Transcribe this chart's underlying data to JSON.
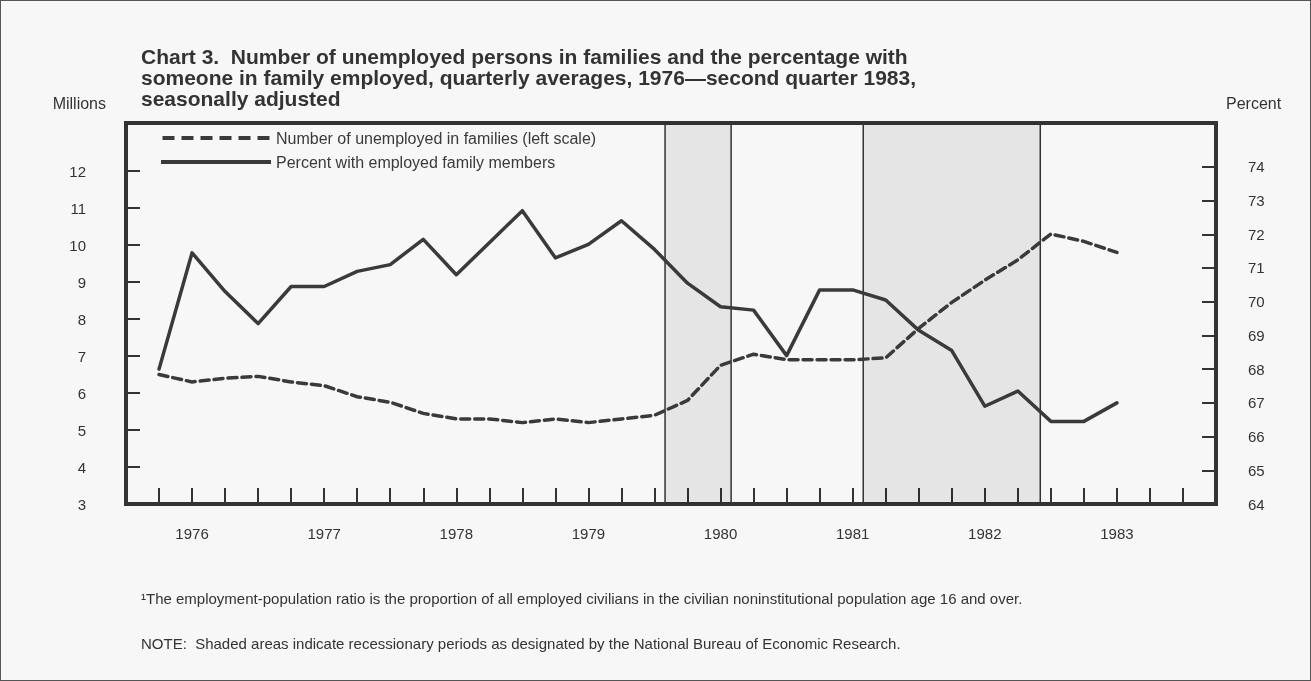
{
  "chart_data": {
    "type": "line",
    "title": "Chart 3.  Number of unemployed persons in families and the percentage with someone in family employed, quarterly averages, 1976—second quarter 1983, seasonally adjusted",
    "ylabel": "Millions",
    "y2label": "Percent",
    "x": [
      1976,
      1976.25,
      1976.5,
      1976.75,
      1977,
      1977.25,
      1977.5,
      1977.75,
      1978,
      1978.25,
      1978.5,
      1978.75,
      1979,
      1979.25,
      1979.5,
      1979.75,
      1980,
      1980.25,
      1980.5,
      1980.75,
      1981,
      1981.25,
      1981.5,
      1981.75,
      1982,
      1982.25,
      1982.5,
      1982.75,
      1983,
      1983.25
    ],
    "series": [
      {
        "name": "Number of unemployed in families (left scale)",
        "color": "#3a3a3a",
        "line_style": "dashed",
        "values": [
          6.5,
          6.3,
          6.4,
          6.45,
          6.3,
          6.2,
          5.9,
          5.75,
          5.45,
          5.3,
          5.3,
          5.2,
          5.3,
          5.2,
          5.3,
          5.4,
          5.8,
          6.75,
          7.05,
          6.9,
          6.9,
          6.9,
          6.95,
          7.75,
          8.45,
          9.05,
          9.6,
          10.3,
          10.1,
          9.8
        ]
      },
      {
        "name": "Percent with employed family members",
        "color": "#3a3a3a",
        "line_style": "solid",
        "axis": "y2",
        "values": [
          68.0,
          71.45,
          70.3,
          69.35,
          70.45,
          70.45,
          70.9,
          71.1,
          71.85,
          70.8,
          71.75,
          72.7,
          71.3,
          71.7,
          72.4,
          71.55,
          70.55,
          69.85,
          69.75,
          68.4,
          70.35,
          70.35,
          70.05,
          69.15,
          68.55,
          66.9,
          67.35,
          66.45,
          66.45,
          67.0
        ]
      }
    ],
    "xlim": [
      1975.75,
      1984
    ],
    "xticks": [
      {
        "value": 1976,
        "label": null
      },
      {
        "value": 1976.25,
        "label": "1976"
      },
      {
        "value": 1976.5,
        "label": null
      },
      {
        "value": 1976.75,
        "label": null
      },
      {
        "value": 1977,
        "label": null
      },
      {
        "value": 1977.25,
        "label": "1977"
      },
      {
        "value": 1977.5,
        "label": null
      },
      {
        "value": 1977.75,
        "label": null
      },
      {
        "value": 1978,
        "label": null
      },
      {
        "value": 1978.25,
        "label": "1978"
      },
      {
        "value": 1978.5,
        "label": null
      },
      {
        "value": 1978.75,
        "label": null
      },
      {
        "value": 1979,
        "label": null
      },
      {
        "value": 1979.25,
        "label": "1979"
      },
      {
        "value": 1979.5,
        "label": null
      },
      {
        "value": 1979.75,
        "label": null
      },
      {
        "value": 1980,
        "label": null
      },
      {
        "value": 1980.25,
        "label": "1980"
      },
      {
        "value": 1980.5,
        "label": null
      },
      {
        "value": 1980.75,
        "label": null
      },
      {
        "value": 1981,
        "label": null
      },
      {
        "value": 1981.25,
        "label": "1981"
      },
      {
        "value": 1981.5,
        "label": null
      },
      {
        "value": 1981.75,
        "label": null
      },
      {
        "value": 1982,
        "label": null
      },
      {
        "value": 1982.25,
        "label": "1982"
      },
      {
        "value": 1982.5,
        "label": null
      },
      {
        "value": 1982.75,
        "label": null
      },
      {
        "value": 1983,
        "label": null
      },
      {
        "value": 1983.25,
        "label": "1983"
      },
      {
        "value": 1983.5,
        "label": null
      },
      {
        "value": 1983.75,
        "label": null
      }
    ],
    "ylim": [
      3,
      13.3
    ],
    "yticks": [
      3,
      4,
      5,
      6,
      7,
      8,
      9,
      10,
      11,
      12
    ],
    "y2lim": [
      64,
      75.3
    ],
    "y2ticks": [
      64,
      65,
      66,
      67,
      68,
      69,
      70,
      71,
      72,
      73,
      74
    ],
    "bands": [
      {
        "axis": "x",
        "from": 1979.83,
        "to": 1980.33
      },
      {
        "axis": "x",
        "from": 1981.33,
        "to": 1982.67
      }
    ],
    "grid": false,
    "marker": "none",
    "legend": "top left",
    "annotations": [
      "¹The employment-population ratio is the proportion of all employed civilians in the civilian noninstitutional population age 16 and over.",
      "NOTE:  Shaded areas indicate recessionary periods as designated by the National Bureau of Economic Research."
    ]
  }
}
